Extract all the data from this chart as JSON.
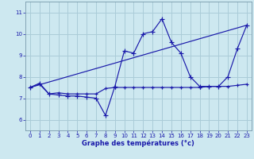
{
  "xlabel": "Graphe des températures (°c)",
  "xlim": [
    -0.5,
    23.5
  ],
  "ylim": [
    5.5,
    11.5
  ],
  "yticks": [
    6,
    7,
    8,
    9,
    10,
    11
  ],
  "xticks": [
    0,
    1,
    2,
    3,
    4,
    5,
    6,
    7,
    8,
    9,
    10,
    11,
    12,
    13,
    14,
    15,
    16,
    17,
    18,
    19,
    20,
    21,
    22,
    23
  ],
  "bg_color": "#cde8f0",
  "line_color": "#1a1aaa",
  "grid_color": "#aaccd8",
  "series1_x": [
    0,
    1,
    2,
    3,
    4,
    5,
    6,
    7,
    8,
    9,
    10,
    11,
    12,
    13,
    14,
    15,
    16,
    17,
    18,
    19,
    20,
    21,
    22,
    23
  ],
  "series1_y": [
    7.5,
    7.7,
    7.2,
    7.15,
    7.1,
    7.1,
    7.05,
    7.0,
    6.2,
    7.55,
    9.2,
    9.1,
    10.0,
    10.1,
    10.7,
    9.6,
    9.1,
    8.0,
    7.55,
    7.55,
    7.55,
    8.0,
    9.3,
    10.4
  ],
  "series2_x": [
    0,
    1,
    2,
    3,
    4,
    5,
    6,
    7,
    8,
    9,
    10,
    11,
    12,
    13,
    14,
    15,
    16,
    17,
    18,
    19,
    20,
    21,
    22,
    23
  ],
  "series2_y": [
    7.5,
    7.65,
    7.2,
    7.25,
    7.2,
    7.2,
    7.2,
    7.2,
    7.45,
    7.5,
    7.5,
    7.5,
    7.5,
    7.5,
    7.5,
    7.5,
    7.5,
    7.5,
    7.5,
    7.55,
    7.55,
    7.55,
    7.6,
    7.65
  ],
  "series3_x": [
    0,
    23
  ],
  "series3_y": [
    7.5,
    10.4
  ]
}
